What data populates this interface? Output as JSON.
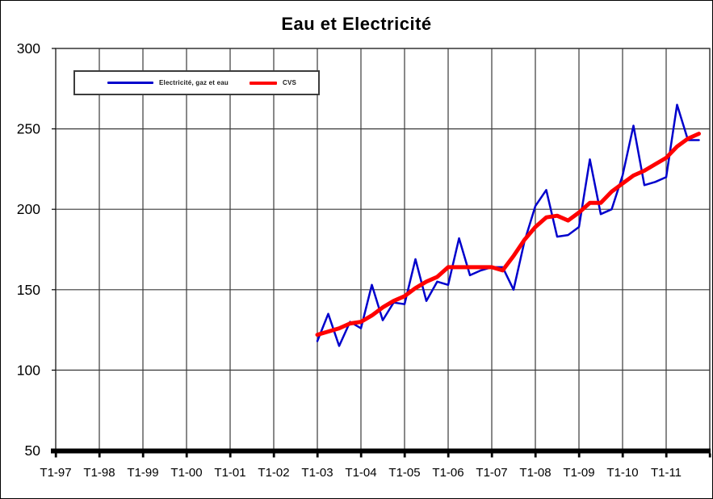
{
  "chart_data": {
    "type": "line",
    "title": "Eau et Electricité",
    "x_axis": {
      "tick_labels": [
        "T1-97",
        "T1-98",
        "T1-99",
        "T1-00",
        "T1-01",
        "T1-02",
        "T1-03",
        "T1-04",
        "T1-05",
        "T1-06",
        "T1-07",
        "T1-08",
        "T1-09",
        "T1-10",
        "T1-11"
      ],
      "quarters_per_year": 4,
      "total_quarter_slots": 60
    },
    "y_axis": {
      "min": 50,
      "max": 300,
      "tick_step": 50,
      "ticks": [
        300,
        250,
        200,
        150,
        100,
        50
      ]
    },
    "grid": true,
    "legend_position": "top-left",
    "data_quarters": [
      "T1-03",
      "T2-03",
      "T3-03",
      "T4-03",
      "T1-04",
      "T2-04",
      "T3-04",
      "T4-04",
      "T1-05",
      "T2-05",
      "T3-05",
      "T4-05",
      "T1-06",
      "T2-06",
      "T3-06",
      "T4-06",
      "T1-07",
      "T2-07",
      "T3-07",
      "T4-07",
      "T1-08",
      "T2-08",
      "T3-08",
      "T4-08",
      "T1-09",
      "T2-09",
      "T3-09",
      "T4-09",
      "T1-10",
      "T2-10",
      "T3-10",
      "T4-10",
      "T1-11",
      "T2-11",
      "T3-11",
      "T4-11"
    ],
    "series": [
      {
        "name": "Electricité, gaz et eau",
        "color": "#0000cc",
        "line_width": 2.5,
        "start_quarter": "T1-03",
        "start_slot": 24,
        "values": [
          118,
          135,
          115,
          130,
          126,
          153,
          131,
          142,
          141,
          169,
          143,
          155,
          153,
          182,
          159,
          162,
          164,
          164,
          150,
          180,
          202,
          212,
          183,
          184,
          189,
          231,
          197,
          200,
          221,
          252,
          215,
          217,
          220,
          265,
          243,
          243
        ]
      },
      {
        "name": "CVS",
        "color": "#ff0000",
        "line_width": 5,
        "start_quarter": "T1-03",
        "start_slot": 24,
        "values": [
          122,
          124,
          126,
          129,
          130,
          134,
          139,
          143,
          146,
          151,
          155,
          158,
          164,
          164,
          164,
          164,
          164,
          162,
          171,
          181,
          189,
          195,
          196,
          193,
          198,
          204,
          204,
          211,
          216,
          221,
          224,
          228,
          232,
          239,
          244,
          247
        ]
      }
    ],
    "colors": {
      "grid": "#3a3a3a",
      "axis": "#000000",
      "text": "#000000"
    }
  }
}
